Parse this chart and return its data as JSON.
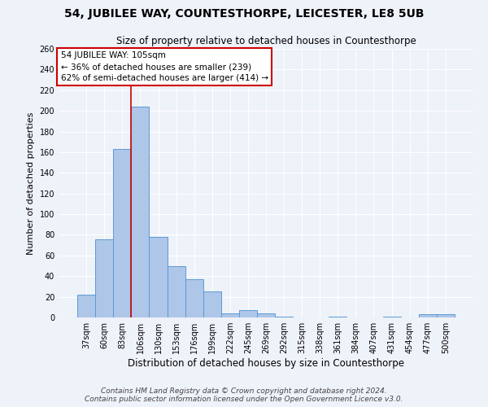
{
  "title": "54, JUBILEE WAY, COUNTESTHORPE, LEICESTER, LE8 5UB",
  "subtitle": "Size of property relative to detached houses in Countesthorpe",
  "xlabel": "Distribution of detached houses by size in Countesthorpe",
  "ylabel": "Number of detached properties",
  "bar_labels": [
    "37sqm",
    "60sqm",
    "83sqm",
    "106sqm",
    "130sqm",
    "153sqm",
    "176sqm",
    "199sqm",
    "222sqm",
    "245sqm",
    "269sqm",
    "292sqm",
    "315sqm",
    "338sqm",
    "361sqm",
    "384sqm",
    "407sqm",
    "431sqm",
    "454sqm",
    "477sqm",
    "500sqm"
  ],
  "bar_values": [
    22,
    76,
    163,
    204,
    78,
    50,
    37,
    25,
    4,
    7,
    4,
    1,
    0,
    0,
    1,
    0,
    0,
    1,
    0,
    3,
    3
  ],
  "bar_color": "#aec6e8",
  "bar_edge_color": "#5b9bd5",
  "vline_color": "#cc0000",
  "annotation_title": "54 JUBILEE WAY: 105sqm",
  "annotation_line1": "← 36% of detached houses are smaller (239)",
  "annotation_line2": "62% of semi-detached houses are larger (414) →",
  "annotation_box_color": "#ffffff",
  "annotation_box_edge_color": "#cc0000",
  "ylim": [
    0,
    260
  ],
  "yticks": [
    0,
    20,
    40,
    60,
    80,
    100,
    120,
    140,
    160,
    180,
    200,
    220,
    240,
    260
  ],
  "footer_line1": "Contains HM Land Registry data © Crown copyright and database right 2024.",
  "footer_line2": "Contains public sector information licensed under the Open Government Licence v3.0.",
  "background_color": "#eef2f9",
  "grid_color": "#ffffff",
  "title_fontsize": 10,
  "subtitle_fontsize": 8.5,
  "xlabel_fontsize": 8.5,
  "ylabel_fontsize": 8,
  "tick_fontsize": 7,
  "footer_fontsize": 6.5,
  "annotation_fontsize": 7.5
}
